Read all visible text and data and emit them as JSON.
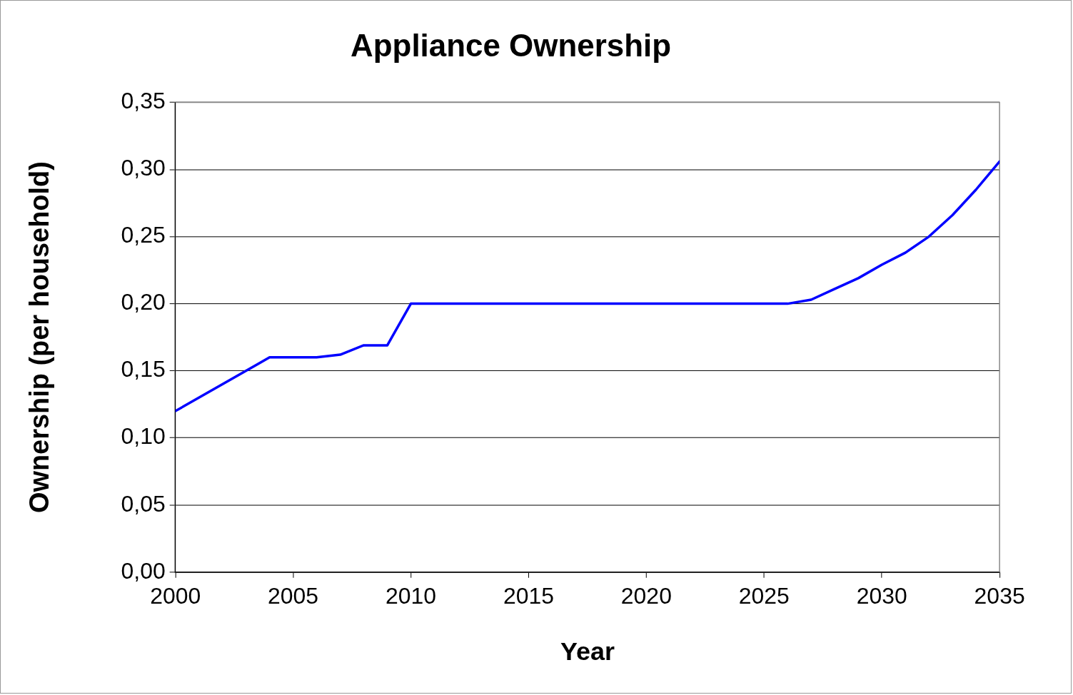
{
  "chart_data": {
    "type": "line",
    "title": "Appliance Ownership",
    "xlabel": "Year",
    "ylabel": "Ownership (per household)",
    "x": [
      2000,
      2004,
      2006,
      2007,
      2008,
      2009,
      2010,
      2026,
      2027,
      2028,
      2029,
      2030,
      2031,
      2032,
      2033,
      2034,
      2035
    ],
    "values": [
      0.12,
      0.16,
      0.16,
      0.162,
      0.169,
      0.169,
      0.2,
      0.2,
      0.203,
      0.211,
      0.219,
      0.229,
      0.238,
      0.25,
      0.266,
      0.285,
      0.306
    ],
    "color": "#0000ff",
    "xlim": [
      2000,
      2035
    ],
    "xticks": [
      2000,
      2005,
      2010,
      2015,
      2020,
      2025,
      2030,
      2035
    ],
    "ylim": [
      0,
      0.35
    ],
    "yticks": [
      {
        "value": 0,
        "label": "0,00"
      },
      {
        "value": 0.05,
        "label": "0,05"
      },
      {
        "value": 0.1,
        "label": "0,10"
      },
      {
        "value": 0.15,
        "label": "0,15"
      },
      {
        "value": 0.2,
        "label": "0,20"
      },
      {
        "value": 0.25,
        "label": "0,25"
      },
      {
        "value": 0.3,
        "label": "0,30"
      },
      {
        "value": 0.35,
        "label": "0,35"
      }
    ],
    "grid": "y",
    "marker": "none",
    "line_style": "solid",
    "legend": false
  }
}
